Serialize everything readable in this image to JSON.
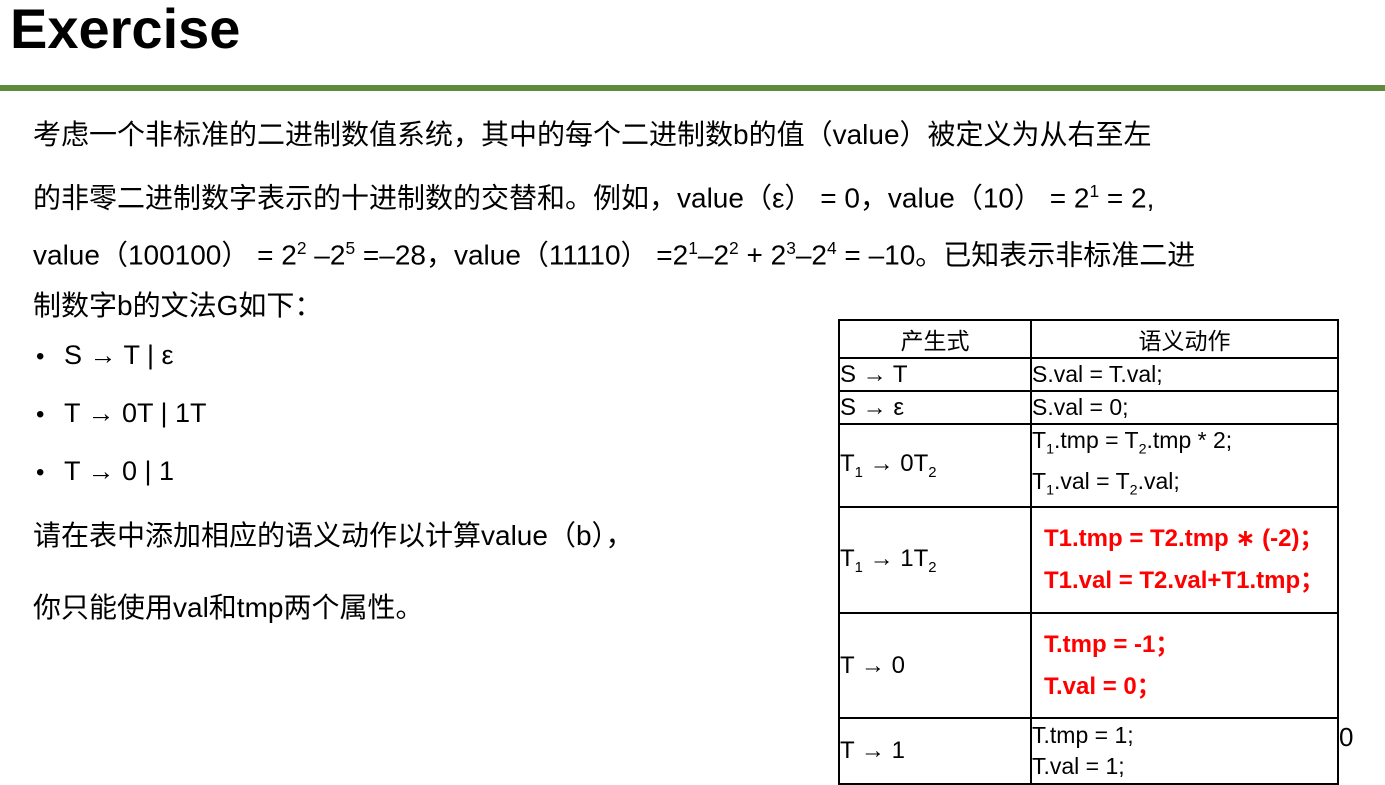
{
  "slide": {
    "title": "Exercise",
    "page_number": "0",
    "accent_color": "#5d8b3b",
    "answer_color": "#ff0000"
  },
  "paragraph": {
    "lines": [
      [
        {
          "t": "考虑一个非标准的二进制数值系统，其中的每个二进制数b的值（value）被定义为从右至左"
        }
      ],
      [
        {
          "t": "的非零二进制数字表示的十进制数的交替和。例如，value（ε） = 0，value（10） = 2"
        },
        {
          "t": "1",
          "s": "sup"
        },
        {
          "t": " = 2,"
        }
      ],
      [
        {
          "t": "value（100100） = 2"
        },
        {
          "t": "2",
          "s": "sup"
        },
        {
          "t": " –2"
        },
        {
          "t": "5",
          "s": "sup"
        },
        {
          "t": " =–28，value（11110） =2"
        },
        {
          "t": "1",
          "s": "sup"
        },
        {
          "t": "–2"
        },
        {
          "t": "2",
          "s": "sup"
        },
        {
          "t": " + 2"
        },
        {
          "t": "3",
          "s": "sup"
        },
        {
          "t": "–2"
        },
        {
          "t": "4",
          "s": "sup"
        },
        {
          "t": " = –10。已知表示非标准二进"
        }
      ],
      [
        {
          "t": "制数字b的文法G如下："
        }
      ]
    ]
  },
  "grammar": {
    "bullets": [
      "S → T | ε",
      "T → 0T | 1T",
      "T → 0 | 1"
    ]
  },
  "prompt": {
    "line1": "请在表中添加相应的语义动作以计算value（b），",
    "line2": "你只能使用val和tmp两个属性。"
  },
  "table": {
    "headers": [
      "产生式",
      "语义动作"
    ],
    "rows": [
      {
        "red": false,
        "production": [
          {
            "t": "S → T"
          }
        ],
        "actions": [
          [
            {
              "t": "S.val = T.val;"
            }
          ]
        ]
      },
      {
        "red": false,
        "production": [
          {
            "t": "S → ε"
          }
        ],
        "actions": [
          [
            {
              "t": "S.val = 0;"
            }
          ]
        ]
      },
      {
        "red": false,
        "production": [
          {
            "t": "T"
          },
          {
            "t": "1",
            "s": "sub"
          },
          {
            "t": " → 0T"
          },
          {
            "t": "2",
            "s": "sub"
          }
        ],
        "actions": [
          [
            {
              "t": "T"
            },
            {
              "t": "1",
              "s": "sub"
            },
            {
              "t": ".tmp = T"
            },
            {
              "t": "2",
              "s": "sub"
            },
            {
              "t": ".tmp * 2;"
            }
          ],
          [
            {
              "t": "T"
            },
            {
              "t": "1",
              "s": "sub"
            },
            {
              "t": ".val = T"
            },
            {
              "t": "2",
              "s": "sub"
            },
            {
              "t": ".val;"
            }
          ]
        ]
      },
      {
        "red": true,
        "production": [
          {
            "t": "T"
          },
          {
            "t": "1",
            "s": "sub"
          },
          {
            "t": " → 1T"
          },
          {
            "t": "2",
            "s": "sub"
          }
        ],
        "actions": [
          [
            {
              "t": "T1.tmp = T2.tmp ∗ (-2)；"
            }
          ],
          [
            {
              "t": "T1.val = T2.val+T1.tmp；"
            }
          ]
        ]
      },
      {
        "red": true,
        "production": [
          {
            "t": "T → 0"
          }
        ],
        "actions": [
          [
            {
              "t": "T.tmp = -1；"
            }
          ],
          [
            {
              "t": "T.val = 0；"
            }
          ]
        ]
      },
      {
        "red": false,
        "production": [
          {
            "t": "T → 1"
          }
        ],
        "actions": [
          [
            {
              "t": "T.tmp = 1;"
            }
          ],
          [
            {
              "t": "T.val = 1;"
            }
          ]
        ]
      }
    ]
  }
}
